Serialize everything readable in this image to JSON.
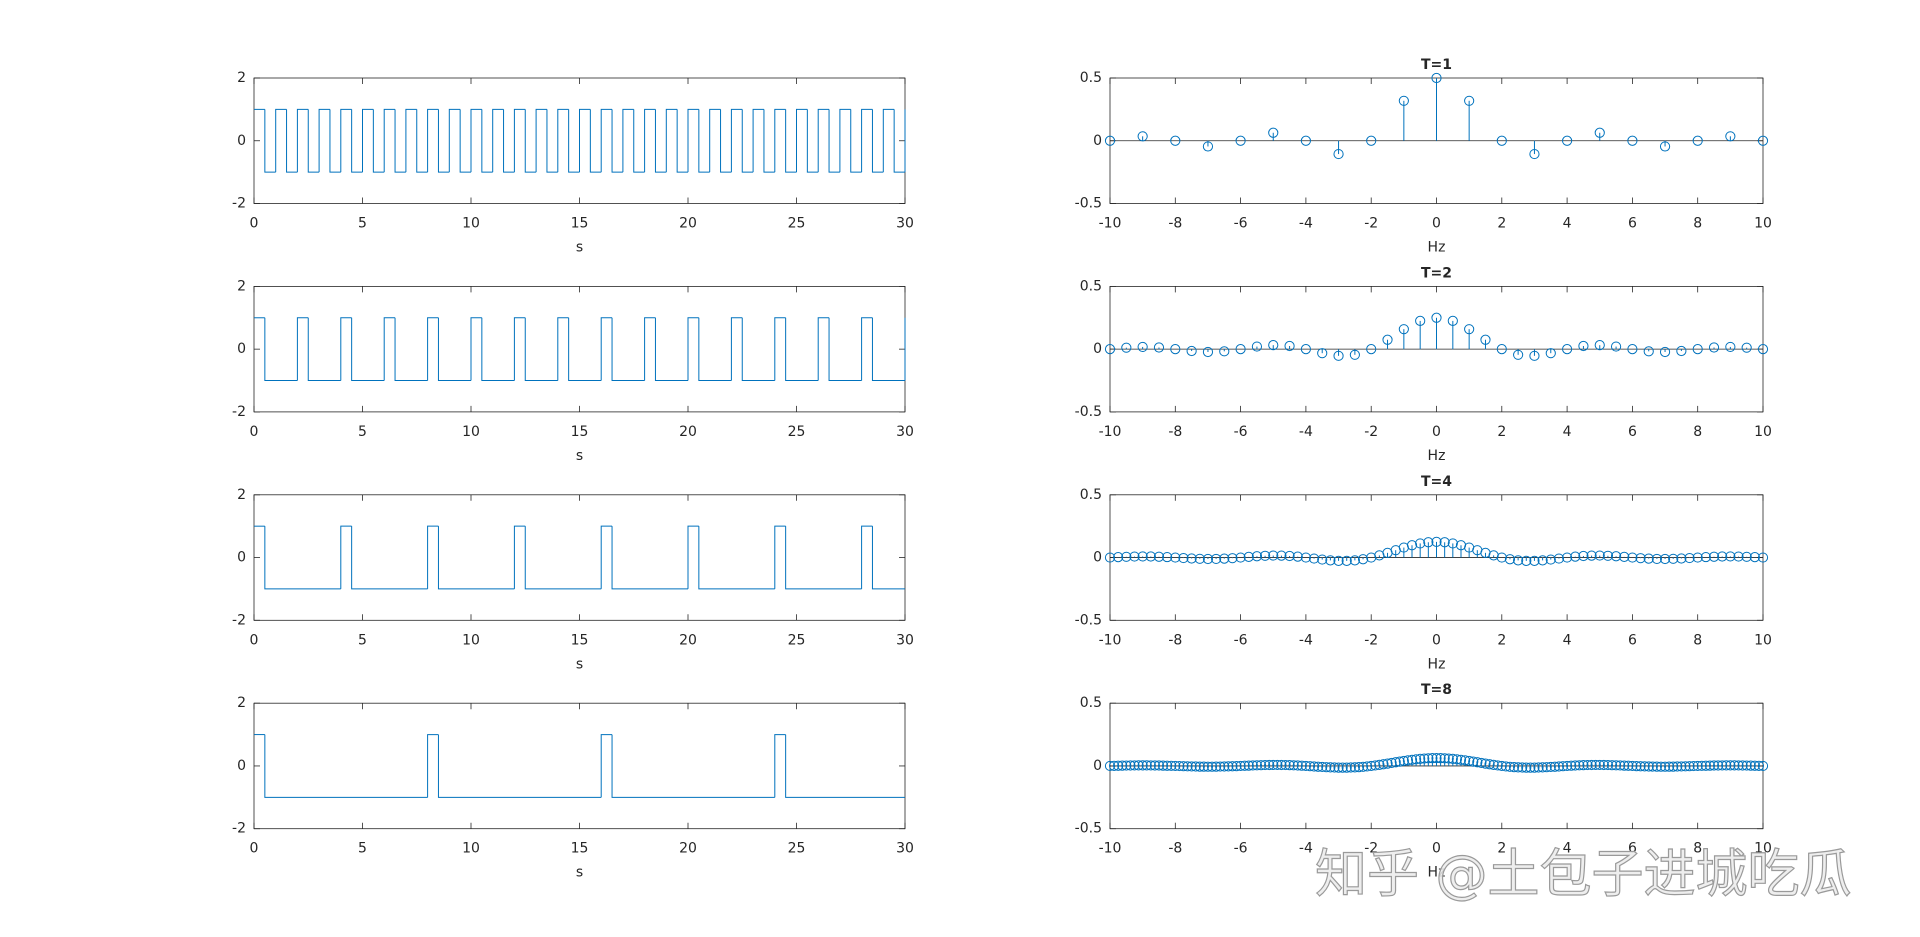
{
  "chart_data": [
    {
      "type": "step",
      "xlabel": "s",
      "color": "#0072bd",
      "xlim": [
        0,
        30
      ],
      "ylim": [
        -2,
        2
      ],
      "xticks": [
        0,
        5,
        10,
        15,
        20,
        25,
        30
      ],
      "yticks": [
        -2,
        0,
        2
      ],
      "x": [
        0,
        0.5,
        1,
        1.5,
        2,
        2.5,
        3,
        3.5,
        4,
        4.5,
        5,
        5.5,
        6,
        6.5,
        7,
        7.5,
        8,
        8.5,
        9,
        9.5,
        10,
        10.5,
        11,
        11.5,
        12,
        12.5,
        13,
        13.5,
        14,
        14.5,
        15,
        15.5,
        16,
        16.5,
        17,
        17.5,
        18,
        18.5,
        19,
        19.5,
        20,
        20.5,
        21,
        21.5,
        22,
        22.5,
        23,
        23.5,
        24,
        24.5,
        25,
        25.5,
        26,
        26.5,
        27,
        27.5,
        28,
        28.5,
        29,
        29.5,
        30
      ],
      "values": [
        1,
        -1,
        1,
        -1,
        1,
        -1,
        1,
        -1,
        1,
        -1,
        1,
        -1,
        1,
        -1,
        1,
        -1,
        1,
        -1,
        1,
        -1,
        1,
        -1,
        1,
        -1,
        1,
        -1,
        1,
        -1,
        1,
        -1,
        1,
        -1,
        1,
        -1,
        1,
        -1,
        1,
        -1,
        1,
        -1,
        1,
        -1,
        1,
        -1,
        1,
        -1,
        1,
        -1,
        1,
        -1,
        1,
        -1,
        1,
        -1,
        1,
        -1,
        1,
        -1,
        1,
        -1,
        1
      ]
    },
    {
      "type": "stem",
      "title": "T=1",
      "xlabel": "Hz",
      "color": "#0072bd",
      "xlim": [
        -10,
        10
      ],
      "ylim": [
        -0.5,
        0.5
      ],
      "xticks": [
        -10,
        -8,
        -6,
        -4,
        -2,
        0,
        2,
        4,
        6,
        8,
        10
      ],
      "yticks": [
        -0.5,
        0,
        0.5
      ],
      "x": [
        -10,
        -9,
        -8,
        -7,
        -6,
        -5,
        -4,
        -3,
        -2,
        -1,
        0,
        1,
        2,
        3,
        4,
        5,
        6,
        7,
        8,
        9,
        10
      ],
      "values": [
        0,
        0.0354,
        0,
        -0.0455,
        0,
        0.0637,
        0,
        -0.1061,
        0,
        0.3183,
        0.5,
        0.3183,
        0,
        -0.1061,
        0,
        0.0637,
        0,
        -0.0455,
        0,
        0.0354,
        0
      ]
    },
    {
      "type": "step",
      "xlabel": "s",
      "color": "#0072bd",
      "xlim": [
        0,
        30
      ],
      "ylim": [
        -2,
        2
      ],
      "xticks": [
        0,
        5,
        10,
        15,
        20,
        25,
        30
      ],
      "yticks": [
        -2,
        0,
        2
      ],
      "x": [
        0,
        0.5,
        2,
        2.5,
        4,
        4.5,
        6,
        6.5,
        8,
        8.5,
        10,
        10.5,
        12,
        12.5,
        14,
        14.5,
        16,
        16.5,
        18,
        18.5,
        20,
        20.5,
        22,
        22.5,
        24,
        24.5,
        26,
        26.5,
        28,
        28.5,
        30
      ],
      "values": [
        1,
        -1,
        1,
        -1,
        1,
        -1,
        1,
        -1,
        1,
        -1,
        1,
        -1,
        1,
        -1,
        1,
        -1,
        1,
        -1,
        1,
        -1,
        1,
        -1,
        1,
        -1,
        1,
        -1,
        1,
        -1,
        1,
        -1,
        1
      ]
    },
    {
      "type": "stem",
      "title": "T=2",
      "xlabel": "Hz",
      "color": "#0072bd",
      "xlim": [
        -10,
        10
      ],
      "ylim": [
        -0.5,
        0.5
      ],
      "xticks": [
        -10,
        -8,
        -6,
        -4,
        -2,
        0,
        2,
        4,
        6,
        8,
        10
      ],
      "yticks": [
        -0.5,
        0,
        0.5
      ],
      "x": [
        -10,
        -9.5,
        -9,
        -8.5,
        -8,
        -7.5,
        -7,
        -6.5,
        -6,
        -5.5,
        -5,
        -4.5,
        -4,
        -3.5,
        -3,
        -2.5,
        -2,
        -1.5,
        -1,
        -0.5,
        0,
        0.5,
        1,
        1.5,
        2,
        2.5,
        3,
        3.5,
        4,
        4.5,
        5,
        5.5,
        6,
        6.5,
        7,
        7.5,
        8,
        8.5,
        9,
        9.5,
        10
      ],
      "values": [
        0,
        0.0118,
        0.0177,
        0.0132,
        0,
        -0.015,
        -0.0227,
        -0.0173,
        0,
        0.0205,
        0.0318,
        0.025,
        0,
        -0.0322,
        -0.0531,
        -0.045,
        0,
        0.075,
        0.1592,
        0.2251,
        0.25,
        0.2251,
        0.1592,
        0.075,
        0,
        -0.045,
        -0.0531,
        -0.0322,
        0,
        0.025,
        0.0318,
        0.0205,
        0,
        -0.0173,
        -0.0227,
        -0.015,
        0,
        0.0132,
        0.0177,
        0.0118,
        0
      ]
    },
    {
      "type": "step",
      "xlabel": "s",
      "color": "#0072bd",
      "xlim": [
        0,
        30
      ],
      "ylim": [
        -2,
        2
      ],
      "xticks": [
        0,
        5,
        10,
        15,
        20,
        25,
        30
      ],
      "yticks": [
        -2,
        0,
        2
      ],
      "x": [
        0,
        0.5,
        4,
        4.5,
        8,
        8.5,
        12,
        12.5,
        16,
        16.5,
        20,
        20.5,
        24,
        24.5,
        28,
        28.5,
        30
      ],
      "values": [
        1,
        -1,
        1,
        -1,
        1,
        -1,
        1,
        -1,
        1,
        -1,
        1,
        -1,
        1,
        -1,
        1,
        -1,
        -1
      ]
    },
    {
      "type": "stem",
      "title": "T=4",
      "xlabel": "Hz",
      "color": "#0072bd",
      "xlim": [
        -10,
        10
      ],
      "ylim": [
        -0.5,
        0.5
      ],
      "xticks": [
        -10,
        -8,
        -6,
        -4,
        -2,
        0,
        2,
        4,
        6,
        8,
        10
      ],
      "yticks": [
        -0.5,
        0,
        0.5
      ],
      "x": [
        -10,
        -9.75,
        -9.5,
        -9.25,
        -9,
        -8.75,
        -8.5,
        -8.25,
        -8,
        -7.75,
        -7.5,
        -7.25,
        -7,
        -6.75,
        -6.5,
        -6.25,
        -6,
        -5.75,
        -5.5,
        -5.25,
        -5,
        -4.75,
        -4.5,
        -4.25,
        -4,
        -3.75,
        -3.5,
        -3.25,
        -3,
        -2.75,
        -2.5,
        -2.25,
        -2,
        -1.75,
        -1.5,
        -1.25,
        -1,
        -0.75,
        -0.5,
        -0.25,
        0,
        0.25,
        0.5,
        0.75,
        1,
        1.25,
        1.5,
        1.75,
        2,
        2.25,
        2.5,
        2.75,
        3,
        3.25,
        3.5,
        3.75,
        4,
        4.25,
        4.5,
        4.75,
        5,
        5.25,
        5.5,
        5.75,
        6,
        6.25,
        6.5,
        6.75,
        7,
        7.25,
        7.5,
        7.75,
        8,
        8.25,
        8.5,
        8.75,
        9,
        9.25,
        9.5,
        9.75,
        10
      ],
      "values": [
        0,
        0.0031,
        0.0059,
        0.0079,
        0.0088,
        0.0084,
        0.0066,
        0.0037,
        0,
        -0.0039,
        -0.0075,
        -0.0101,
        -0.0114,
        -0.0109,
        -0.0087,
        -0.0049,
        0,
        0.0053,
        0.0102,
        0.014,
        0.0159,
        0.0155,
        0.0125,
        0.0072,
        0,
        -0.0081,
        -0.0161,
        -0.0226,
        -0.0265,
        -0.0267,
        -0.0225,
        -0.0135,
        0,
        0.0174,
        0.0375,
        0.0588,
        0.0796,
        0.098,
        0.1125,
        0.1218,
        0.125,
        0.1218,
        0.1125,
        0.098,
        0.0796,
        0.0588,
        0.0375,
        0.0174,
        0,
        -0.0135,
        -0.0225,
        -0.0267,
        -0.0265,
        -0.0226,
        -0.0161,
        -0.0081,
        0,
        0.0072,
        0.0125,
        0.0155,
        0.0159,
        0.014,
        0.0102,
        0.0053,
        0,
        -0.0049,
        -0.0087,
        -0.0109,
        -0.0114,
        -0.0101,
        -0.0075,
        -0.0039,
        0,
        0.0037,
        0.0066,
        0.0084,
        0.0088,
        0.0079,
        0.0059,
        0.0031,
        0
      ]
    },
    {
      "type": "step",
      "xlabel": "s",
      "color": "#0072bd",
      "xlim": [
        0,
        30
      ],
      "ylim": [
        -2,
        2
      ],
      "xticks": [
        0,
        5,
        10,
        15,
        20,
        25,
        30
      ],
      "yticks": [
        -2,
        0,
        2
      ],
      "x": [
        0,
        0.5,
        8,
        8.5,
        16,
        16.5,
        24,
        24.5,
        30
      ],
      "values": [
        1,
        -1,
        1,
        -1,
        1,
        -1,
        1,
        -1,
        -1
      ]
    },
    {
      "type": "stem",
      "title": "T=8",
      "xlabel": "Hz",
      "color": "#0072bd",
      "xlim": [
        -10,
        10
      ],
      "ylim": [
        -0.5,
        0.5
      ],
      "xticks": [
        -10,
        -8,
        -6,
        -4,
        -2,
        0,
        2,
        4,
        6,
        8,
        10
      ],
      "yticks": [
        -0.5,
        0,
        0.5
      ],
      "x": [
        -10,
        -9.875,
        -9.75,
        -9.625,
        -9.5,
        -9.375,
        -9.25,
        -9.125,
        -9,
        -8.875,
        -8.75,
        -8.625,
        -8.5,
        -8.375,
        -8.25,
        -8.125,
        -8,
        -7.875,
        -7.75,
        -7.625,
        -7.5,
        -7.375,
        -7.25,
        -7.125,
        -7,
        -6.875,
        -6.75,
        -6.625,
        -6.5,
        -6.375,
        -6.25,
        -6.125,
        -6,
        -5.875,
        -5.75,
        -5.625,
        -5.5,
        -5.375,
        -5.25,
        -5.125,
        -5,
        -4.875,
        -4.75,
        -4.625,
        -4.5,
        -4.375,
        -4.25,
        -4.125,
        -4,
        -3.875,
        -3.75,
        -3.625,
        -3.5,
        -3.375,
        -3.25,
        -3.125,
        -3,
        -2.875,
        -2.75,
        -2.625,
        -2.5,
        -2.375,
        -2.25,
        -2.125,
        -2,
        -1.875,
        -1.75,
        -1.625,
        -1.5,
        -1.375,
        -1.25,
        -1.125,
        -1,
        -0.875,
        -0.75,
        -0.625,
        -0.5,
        -0.375,
        -0.25,
        -0.125,
        0,
        0.125,
        0.25,
        0.375,
        0.5,
        0.625,
        0.75,
        0.875,
        1,
        1.125,
        1.25,
        1.375,
        1.5,
        1.625,
        1.75,
        1.875,
        2,
        2.125,
        2.25,
        2.375,
        2.5,
        2.625,
        2.75,
        2.875,
        3,
        3.125,
        3.25,
        3.375,
        3.5,
        3.625,
        3.75,
        3.875,
        4,
        4.125,
        4.25,
        4.375,
        4.5,
        4.625,
        4.75,
        4.875,
        5,
        5.125,
        5.25,
        5.375,
        5.5,
        5.625,
        5.75,
        5.875,
        6,
        6.125,
        6.25,
        6.375,
        6.5,
        6.625,
        6.75,
        6.875,
        7,
        7.125,
        7.25,
        7.375,
        7.5,
        7.625,
        7.75,
        7.875,
        8,
        8.125,
        8.25,
        8.375,
        8.5,
        8.625,
        8.75,
        8.875,
        9,
        9.125,
        9.25,
        9.375,
        9.5,
        9.625,
        9.75,
        9.875,
        10
      ],
      "values": [
        0,
        0.0008,
        0.0016,
        0.0023,
        0.003,
        0.0035,
        0.004,
        0.0043,
        0.0044,
        0.0044,
        0.0042,
        0.0038,
        0.0033,
        0.0026,
        0.0018,
        0.001,
        0,
        -0.001,
        -0.002,
        -0.0029,
        -0.0038,
        -0.0045,
        -0.0051,
        -0.0055,
        -0.0057,
        -0.0057,
        -0.0054,
        -0.005,
        -0.0043,
        -0.0035,
        -0.0024,
        -0.0013,
        0,
        0.0013,
        0.0026,
        0.0039,
        0.0051,
        0.0062,
        0.007,
        0.0076,
        0.008,
        0.008,
        0.0077,
        0.0072,
        0.0063,
        0.0051,
        0.0036,
        0.0019,
        0,
        -0.002,
        -0.0041,
        -0.0061,
        -0.008,
        -0.0098,
        -0.0113,
        -0.0125,
        -0.0133,
        -0.0136,
        -0.0134,
        -0.0126,
        -0.0113,
        -0.0093,
        -0.0068,
        -0.0037,
        0,
        0.0041,
        0.0087,
        0.0136,
        0.0188,
        0.0241,
        0.0294,
        0.0347,
        0.0398,
        0.0446,
        0.049,
        0.0529,
        0.0563,
        0.0589,
        0.0609,
        0.0621,
        0.0625,
        0.0621,
        0.0609,
        0.0589,
        0.0563,
        0.0529,
        0.049,
        0.0446,
        0.0398,
        0.0347,
        0.0294,
        0.0241,
        0.0188,
        0.0136,
        0.0087,
        0.0041,
        0,
        -0.0037,
        -0.0068,
        -0.0093,
        -0.0113,
        -0.0126,
        -0.0134,
        -0.0136,
        -0.0133,
        -0.0125,
        -0.0113,
        -0.0098,
        -0.008,
        -0.0061,
        -0.0041,
        -0.002,
        0,
        0.0019,
        0.0036,
        0.0051,
        0.0063,
        0.0072,
        0.0077,
        0.008,
        0.008,
        0.0076,
        0.007,
        0.0062,
        0.0051,
        0.0039,
        0.0026,
        0.0013,
        0,
        -0.0013,
        -0.0024,
        -0.0035,
        -0.0043,
        -0.005,
        -0.0054,
        -0.0057,
        -0.0057,
        -0.0055,
        -0.0051,
        -0.0045,
        -0.0038,
        -0.0029,
        -0.002,
        -0.001,
        0,
        0.001,
        0.0018,
        0.0026,
        0.0033,
        0.0038,
        0.0042,
        0.0044,
        0.0044,
        0.0043,
        0.004,
        0.0035,
        0.003,
        0.0023,
        0.0016,
        0.0008,
        0
      ]
    }
  ],
  "watermark": "知乎 @土包子进城吃瓜"
}
